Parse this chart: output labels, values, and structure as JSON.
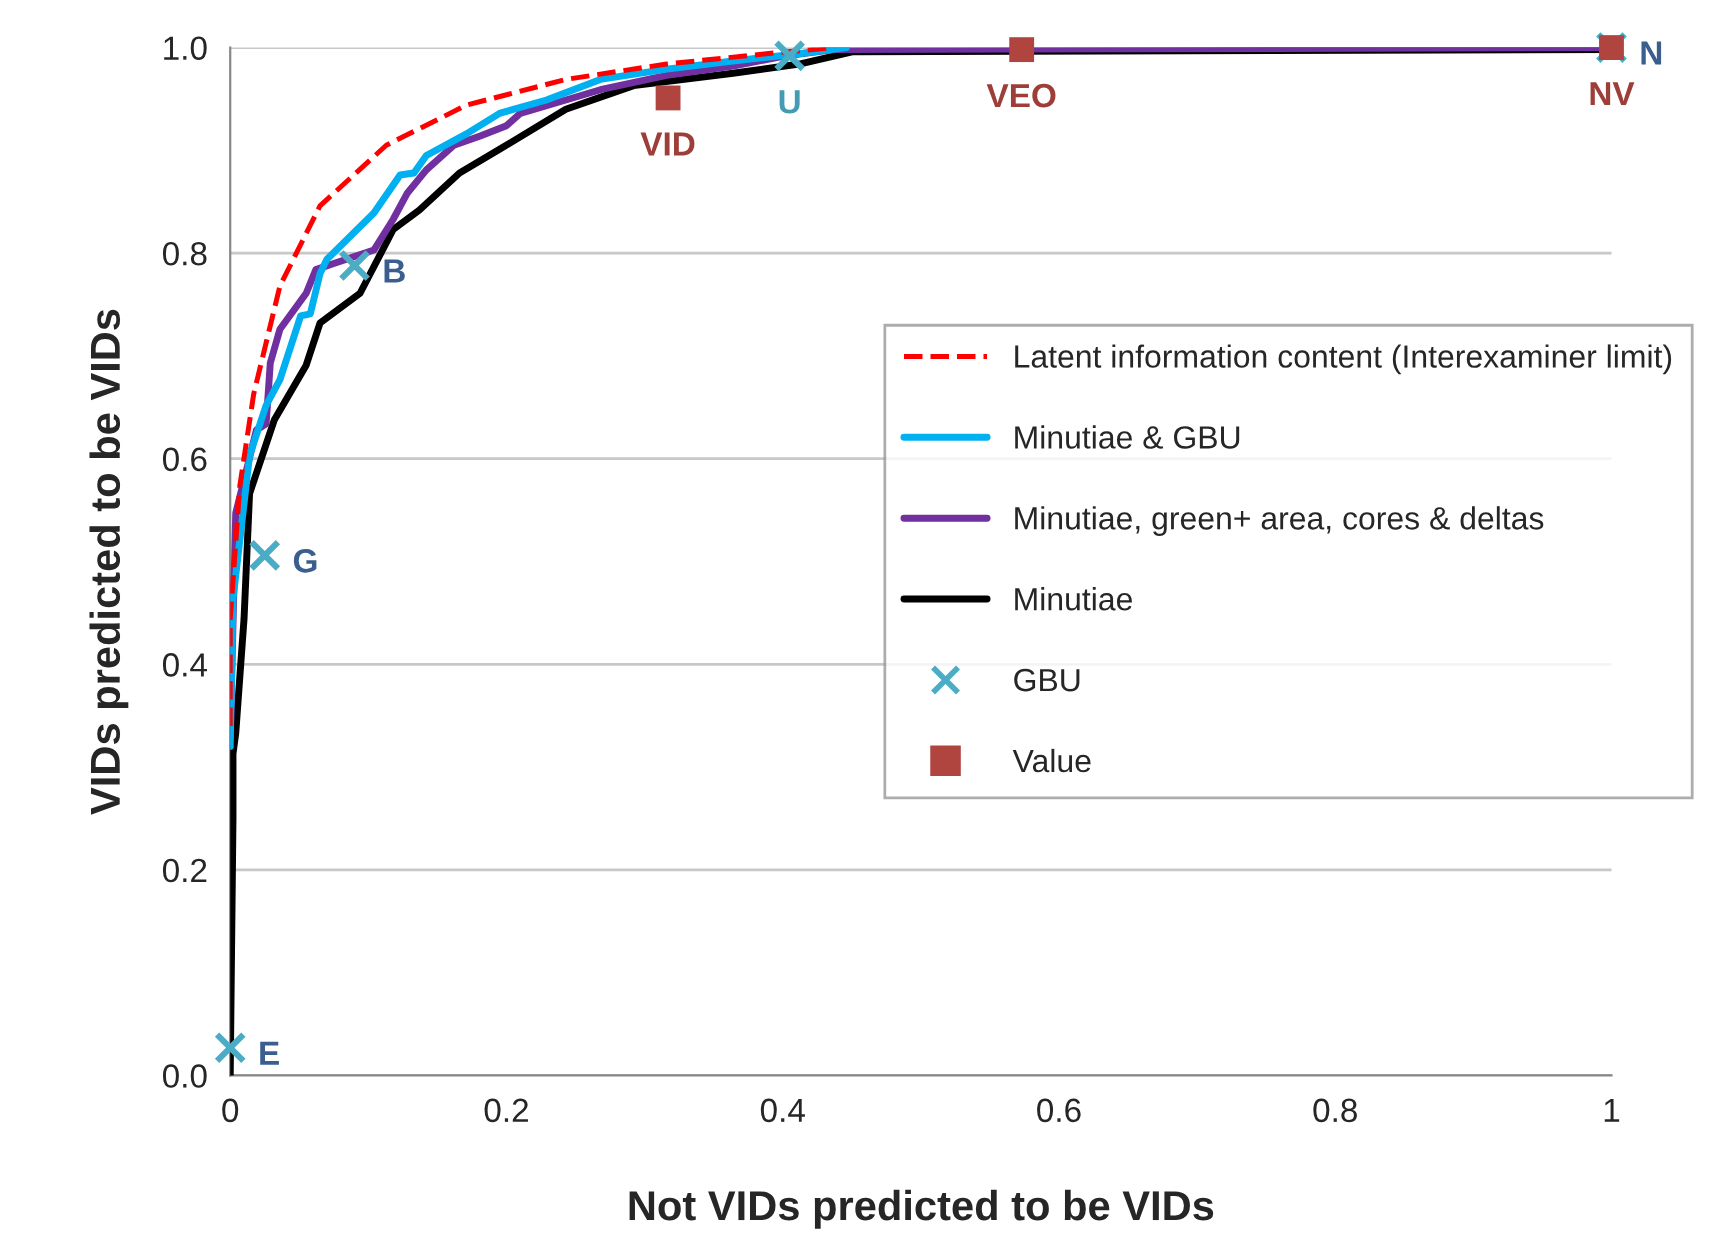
{
  "chart_data": {
    "type": "line",
    "xlabel": "Not VIDs predicted to be VIDs",
    "ylabel": "VIDs predicted to be VIDs",
    "xlim": [
      0,
      1
    ],
    "xticks": [
      0,
      0.2,
      0.4,
      0.6,
      0.8,
      1
    ],
    "ylim": [
      0,
      1
    ],
    "yticks": [
      {
        "value": 0,
        "label": "0.0"
      },
      0.2,
      0.4,
      0.6,
      0.8,
      {
        "value": 1,
        "label": "1.0"
      }
    ],
    "grid": "y",
    "legend": "right",
    "series": [
      {
        "name": "Latent information content (Interexaminer limit)",
        "color": "#ff0000",
        "line_style": "dashed",
        "x": [
          0,
          0,
          0.007,
          0.017,
          0.036,
          0.065,
          0.113,
          0.171,
          0.243,
          0.316,
          0.388,
          0.437
        ],
        "values": [
          0.34,
          0.444,
          0.574,
          0.663,
          0.768,
          0.846,
          0.905,
          0.944,
          0.969,
          0.984,
          0.994,
          1.0
        ]
      },
      {
        "name": "Minutiae & GBU",
        "color": "#00b0f0",
        "x": [
          0,
          0.002,
          0.014,
          0.026,
          0.036,
          0.051,
          0.058,
          0.065,
          0.07,
          0.104,
          0.123,
          0.133,
          0.142,
          0.171,
          0.195,
          0.229,
          0.268,
          0.316,
          0.364,
          0.412,
          0.446
        ],
        "values": [
          0.32,
          0.463,
          0.603,
          0.652,
          0.677,
          0.739,
          0.741,
          0.78,
          0.794,
          0.839,
          0.876,
          0.878,
          0.895,
          0.916,
          0.936,
          0.949,
          0.969,
          0.979,
          0.987,
          0.994,
          1.0
        ]
      },
      {
        "name": "Minutiae, green+ area, cores & deltas",
        "color": "#7030a0",
        "x": [
          0,
          0.004,
          0.019,
          0.026,
          0.029,
          0.036,
          0.055,
          0.062,
          0.075,
          0.104,
          0.118,
          0.128,
          0.142,
          0.162,
          0.181,
          0.2,
          0.21,
          0.243,
          0.268,
          0.316,
          0.364,
          0.402,
          0.437,
          1
        ],
        "values": [
          0.33,
          0.547,
          0.628,
          0.634,
          0.693,
          0.726,
          0.761,
          0.784,
          0.79,
          0.803,
          0.833,
          0.858,
          0.881,
          0.905,
          0.914,
          0.924,
          0.936,
          0.949,
          0.959,
          0.973,
          0.982,
          0.992,
          0.998,
          1.0
        ]
      },
      {
        "name": "Minutiae",
        "color": "#000000",
        "x": [
          0,
          0.002,
          0.002,
          0.004,
          0.01,
          0.014,
          0.032,
          0.055,
          0.065,
          0.094,
          0.118,
          0.137,
          0.166,
          0.195,
          0.243,
          0.292,
          0.364,
          0.412,
          0.451,
          1
        ],
        "values": [
          0,
          0.25,
          0.313,
          0.333,
          0.444,
          0.566,
          0.638,
          0.691,
          0.732,
          0.761,
          0.823,
          0.842,
          0.878,
          0.901,
          0.94,
          0.963,
          0.975,
          0.984,
          0.996,
          0.998
        ]
      },
      {
        "name": "GBU",
        "type": "scatter",
        "marker": "cross",
        "color": "#4bacc6",
        "x": [
          0,
          0.025,
          0.09,
          0.405,
          1
        ],
        "values": [
          0.027,
          0.506,
          0.788,
          0.992,
          1.0
        ],
        "value_labels": [
          "E",
          "G",
          "B",
          "U",
          "N"
        ]
      },
      {
        "name": "Value",
        "type": "scatter",
        "marker": "square",
        "color": "#b0453f",
        "x": [
          0.317,
          0.573,
          1
        ],
        "values": [
          0.951,
          0.998,
          1.0
        ],
        "value_labels": [
          "VID",
          "VEO",
          "NV"
        ]
      }
    ]
  }
}
